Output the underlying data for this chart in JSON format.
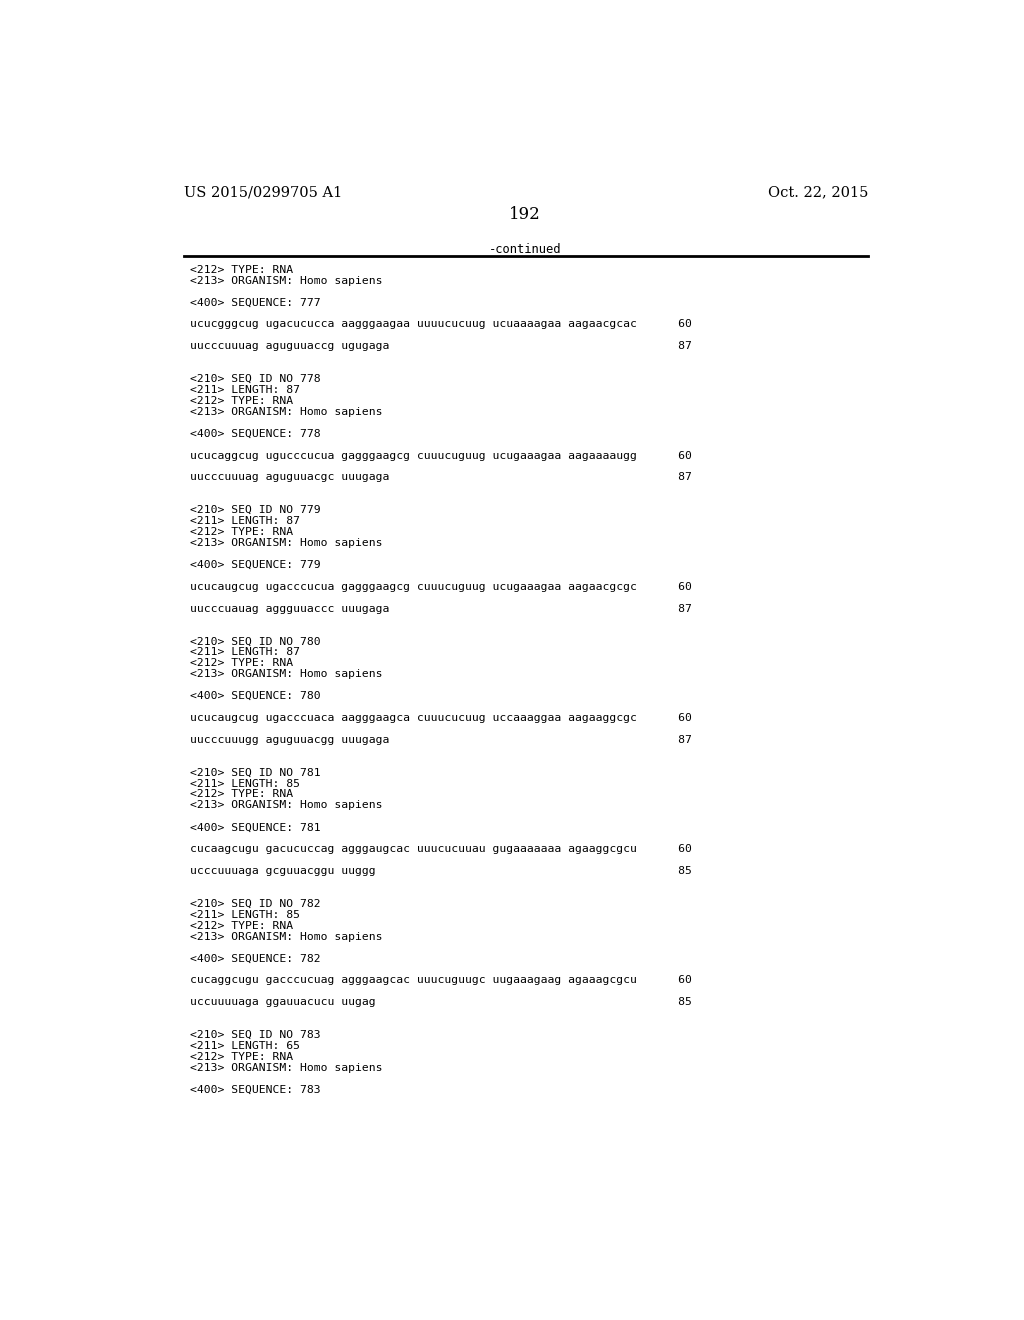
{
  "background_color": "#ffffff",
  "top_left_text": "US 2015/0299705 A1",
  "top_right_text": "Oct. 22, 2015",
  "page_number": "192",
  "continued_text": "-continued",
  "mono_font_size": 8.2,
  "header_font_size": 10.5,
  "page_num_font_size": 12,
  "content": [
    "<212> TYPE: RNA",
    "<213> ORGANISM: Homo sapiens",
    "",
    "<400> SEQUENCE: 777",
    "",
    "ucucgggcug ugacucucca aagggaagaa uuuucucuug ucuaaaagaa aagaacgcac      60",
    "",
    "uucccuuuag aguguuaccg ugugaga                                          87",
    "",
    "",
    "<210> SEQ ID NO 778",
    "<211> LENGTH: 87",
    "<212> TYPE: RNA",
    "<213> ORGANISM: Homo sapiens",
    "",
    "<400> SEQUENCE: 778",
    "",
    "ucucaggcug ugucccucua gagggaagcg cuuucuguug ucugaaagaa aagaaaaugg      60",
    "",
    "uucccuuuag aguguuacgc uuugaga                                          87",
    "",
    "",
    "<210> SEQ ID NO 779",
    "<211> LENGTH: 87",
    "<212> TYPE: RNA",
    "<213> ORGANISM: Homo sapiens",
    "",
    "<400> SEQUENCE: 779",
    "",
    "ucucaugcug ugacccucua gagggaagcg cuuucuguug ucugaaagaa aagaacgcgc      60",
    "",
    "uucccuauag aggguuaccc uuugaga                                          87",
    "",
    "",
    "<210> SEQ ID NO 780",
    "<211> LENGTH: 87",
    "<212> TYPE: RNA",
    "<213> ORGANISM: Homo sapiens",
    "",
    "<400> SEQUENCE: 780",
    "",
    "ucucaugcug ugacccuaca aagggaagca cuuucucuug uccaaaggaa aagaaggcgc      60",
    "",
    "uucccuuugg aguguuacgg uuugaga                                          87",
    "",
    "",
    "<210> SEQ ID NO 781",
    "<211> LENGTH: 85",
    "<212> TYPE: RNA",
    "<213> ORGANISM: Homo sapiens",
    "",
    "<400> SEQUENCE: 781",
    "",
    "cucaagcugu gacucuccag agggaugcac uuucucuuau gugaaaaaaa agaaggcgcu      60",
    "",
    "ucccuuuaga gcguuacggu uuggg                                            85",
    "",
    "",
    "<210> SEQ ID NO 782",
    "<211> LENGTH: 85",
    "<212> TYPE: RNA",
    "<213> ORGANISM: Homo sapiens",
    "",
    "<400> SEQUENCE: 782",
    "",
    "cucaggcugu gacccucuag agggaagcac uuucuguugc uugaaagaag agaaagcgcu      60",
    "",
    "uccuuuuaga ggauuacucu uugag                                            85",
    "",
    "",
    "<210> SEQ ID NO 783",
    "<211> LENGTH: 65",
    "<212> TYPE: RNA",
    "<213> ORGANISM: Homo sapiens",
    "",
    "<400> SEQUENCE: 783"
  ]
}
